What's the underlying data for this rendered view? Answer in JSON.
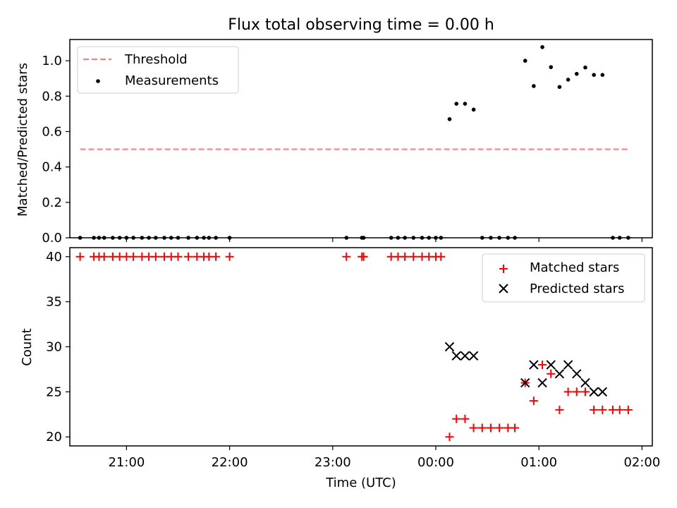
{
  "chart_data": [
    {
      "type": "scatter",
      "title": "Flux total observing time = 0.00 h",
      "xlabel": "",
      "ylabel": "Matched/Predicted stars",
      "xlim": [
        "20:27",
        "02:06"
      ],
      "ylim": [
        0,
        1.12
      ],
      "xticks": [
        "21:00",
        "22:00",
        "23:00",
        "00:00",
        "01:00",
        "02:00"
      ],
      "yticks": [
        "0.0",
        "0.2",
        "0.4",
        "0.6",
        "0.8",
        "1.0"
      ],
      "legend_position": "top-left",
      "threshold": {
        "name": "Threshold",
        "value": 0.5,
        "x_start": "20:33",
        "x_end": "01:53",
        "color": "#ff7f7f"
      },
      "series": [
        {
          "name": "Measurements",
          "color": "#000000",
          "points": [
            [
              "20:33",
              0
            ],
            [
              "20:41",
              0
            ],
            [
              "20:44",
              0
            ],
            [
              "20:47",
              0
            ],
            [
              "20:52",
              0
            ],
            [
              "20:56",
              0
            ],
            [
              "21:00",
              0
            ],
            [
              "21:04",
              0
            ],
            [
              "21:09",
              0
            ],
            [
              "21:13",
              0
            ],
            [
              "21:17",
              0
            ],
            [
              "21:22",
              0
            ],
            [
              "21:26",
              0
            ],
            [
              "21:30",
              0
            ],
            [
              "21:36",
              0
            ],
            [
              "21:41",
              0
            ],
            [
              "21:45",
              0
            ],
            [
              "21:48",
              0
            ],
            [
              "21:52",
              0
            ],
            [
              "22:00",
              0
            ],
            [
              "23:08",
              0
            ],
            [
              "23:17",
              0
            ],
            [
              "23:18",
              0
            ],
            [
              "23:34",
              0
            ],
            [
              "23:38",
              0
            ],
            [
              "23:42",
              0
            ],
            [
              "23:47",
              0
            ],
            [
              "23:52",
              0
            ],
            [
              "23:56",
              0
            ],
            [
              "00:00",
              0
            ],
            [
              "00:03",
              0
            ],
            [
              "00:08",
              0.67
            ],
            [
              "00:12",
              0.757
            ],
            [
              "00:17",
              0.757
            ],
            [
              "00:22",
              0.724
            ],
            [
              "00:27",
              0
            ],
            [
              "00:32",
              0
            ],
            [
              "00:37",
              0
            ],
            [
              "00:42",
              0
            ],
            [
              "00:46",
              0
            ],
            [
              "00:52",
              1.0
            ],
            [
              "00:57",
              0.857
            ],
            [
              "01:02",
              1.077
            ],
            [
              "01:07",
              0.964
            ],
            [
              "01:12",
              0.852
            ],
            [
              "01:17",
              0.893
            ],
            [
              "01:22",
              0.926
            ],
            [
              "01:27",
              0.962
            ],
            [
              "01:32",
              0.92
            ],
            [
              "01:37",
              0.92
            ],
            [
              "01:43",
              0
            ],
            [
              "01:47",
              0
            ],
            [
              "01:52",
              0
            ]
          ]
        }
      ]
    },
    {
      "type": "scatter",
      "title": "",
      "xlabel": "Time (UTC)",
      "ylabel": "Count",
      "xlim": [
        "20:27",
        "02:06"
      ],
      "ylim": [
        19,
        41
      ],
      "xticks": [
        "21:00",
        "22:00",
        "23:00",
        "00:00",
        "01:00",
        "02:00"
      ],
      "yticks": [
        "20",
        "25",
        "30",
        "35",
        "40"
      ],
      "legend_position": "top-right",
      "series": [
        {
          "name": "Matched stars",
          "color": "#ff0000",
          "marker": "plus",
          "points": [
            [
              "20:33",
              40
            ],
            [
              "20:41",
              40
            ],
            [
              "20:44",
              40
            ],
            [
              "20:47",
              40
            ],
            [
              "20:52",
              40
            ],
            [
              "20:56",
              40
            ],
            [
              "21:00",
              40
            ],
            [
              "21:04",
              40
            ],
            [
              "21:09",
              40
            ],
            [
              "21:13",
              40
            ],
            [
              "21:17",
              40
            ],
            [
              "21:22",
              40
            ],
            [
              "21:26",
              40
            ],
            [
              "21:30",
              40
            ],
            [
              "21:36",
              40
            ],
            [
              "21:41",
              40
            ],
            [
              "21:45",
              40
            ],
            [
              "21:48",
              40
            ],
            [
              "21:52",
              40
            ],
            [
              "22:00",
              40
            ],
            [
              "23:08",
              40
            ],
            [
              "23:17",
              40
            ],
            [
              "23:18",
              40
            ],
            [
              "23:34",
              40
            ],
            [
              "23:38",
              40
            ],
            [
              "23:42",
              40
            ],
            [
              "23:47",
              40
            ],
            [
              "23:52",
              40
            ],
            [
              "23:56",
              40
            ],
            [
              "00:00",
              40
            ],
            [
              "00:03",
              40
            ],
            [
              "00:08",
              20
            ],
            [
              "00:12",
              22
            ],
            [
              "00:17",
              22
            ],
            [
              "00:22",
              21
            ],
            [
              "00:27",
              21
            ],
            [
              "00:32",
              21
            ],
            [
              "00:37",
              21
            ],
            [
              "00:42",
              21
            ],
            [
              "00:46",
              21
            ],
            [
              "00:52",
              26
            ],
            [
              "00:57",
              24
            ],
            [
              "01:02",
              28
            ],
            [
              "01:07",
              27
            ],
            [
              "01:12",
              23
            ],
            [
              "01:17",
              25
            ],
            [
              "01:22",
              25
            ],
            [
              "01:27",
              25
            ],
            [
              "01:32",
              23
            ],
            [
              "01:37",
              23
            ],
            [
              "01:43",
              23
            ],
            [
              "01:47",
              23
            ],
            [
              "01:52",
              23
            ]
          ]
        },
        {
          "name": "Predicted stars",
          "color": "#000000",
          "marker": "x",
          "points": [
            [
              "00:08",
              30
            ],
            [
              "00:12",
              29
            ],
            [
              "00:17",
              29
            ],
            [
              "00:22",
              29
            ],
            [
              "00:52",
              26
            ],
            [
              "00:57",
              28
            ],
            [
              "01:02",
              26
            ],
            [
              "01:07",
              28
            ],
            [
              "01:12",
              27
            ],
            [
              "01:17",
              28
            ],
            [
              "01:22",
              27
            ],
            [
              "01:27",
              26
            ],
            [
              "01:32",
              25
            ],
            [
              "01:37",
              25
            ]
          ]
        }
      ]
    }
  ]
}
